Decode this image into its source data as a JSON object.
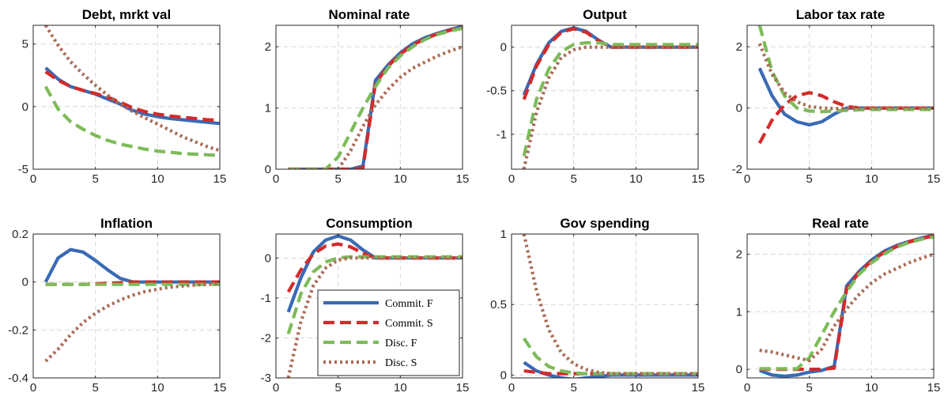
{
  "figure": {
    "panel_count": 8,
    "layout": "2 rows x 4 columns"
  },
  "series_styles": [
    {
      "name": "Commit. F",
      "color": "#3a6ab5",
      "dash": "solid"
    },
    {
      "name": "Commit. S",
      "color": "#d42a2a",
      "dash": "dashed"
    },
    {
      "name": "Disc. F",
      "color": "#7dbb5a",
      "dash": "dashed"
    },
    {
      "name": "Disc. S",
      "color": "#a96b55",
      "dash": "dotted"
    }
  ],
  "legend": {
    "panel": "Consumption",
    "location": "lower-right",
    "entries": [
      "Commit. F",
      "Commit. S",
      "Disc. F",
      "Disc. S"
    ]
  },
  "chart_data": [
    {
      "type": "line",
      "title": "Debt, mrkt val",
      "grid": true,
      "xlim": [
        0,
        15
      ],
      "ylim": [
        -5,
        6.5
      ],
      "xticks": [
        0,
        5,
        10,
        15
      ],
      "yticks": [
        -5,
        0,
        5
      ],
      "yticklabels": [
        "-5",
        "0",
        "5"
      ],
      "x": [
        1,
        2,
        3,
        4,
        5,
        6,
        7,
        8,
        9,
        10,
        11,
        12,
        13,
        14,
        15
      ],
      "series": [
        {
          "name": "Commit. F",
          "values": [
            3.1,
            2.2,
            1.6,
            1.3,
            1.0,
            0.6,
            0.2,
            -0.3,
            -0.6,
            -0.8,
            -0.95,
            -1.05,
            -1.15,
            -1.25,
            -1.35
          ]
        },
        {
          "name": "Commit. S",
          "values": [
            2.8,
            2.1,
            1.6,
            1.3,
            1.05,
            0.75,
            0.35,
            -0.1,
            -0.4,
            -0.6,
            -0.75,
            -0.85,
            -0.95,
            -1.05,
            -1.1
          ]
        },
        {
          "name": "Disc. F",
          "values": [
            1.6,
            -0.2,
            -1.2,
            -1.8,
            -2.3,
            -2.7,
            -3.0,
            -3.2,
            -3.4,
            -3.55,
            -3.65,
            -3.75,
            -3.8,
            -3.85,
            -3.9
          ]
        },
        {
          "name": "Disc. S",
          "values": [
            6.5,
            4.9,
            3.6,
            2.6,
            1.7,
            0.9,
            0.2,
            -0.4,
            -0.9,
            -1.4,
            -1.9,
            -2.4,
            -2.8,
            -3.2,
            -3.5
          ]
        }
      ]
    },
    {
      "type": "line",
      "title": "Nominal rate",
      "grid": true,
      "xlim": [
        0,
        15
      ],
      "ylim": [
        0,
        2.35
      ],
      "xticks": [
        0,
        5,
        10,
        15
      ],
      "yticks": [
        0,
        1,
        2
      ],
      "yticklabels": [
        "0",
        "1",
        "2"
      ],
      "x": [
        1,
        2,
        3,
        4,
        5,
        6,
        7,
        8,
        9,
        10,
        11,
        12,
        13,
        14,
        15
      ],
      "series": [
        {
          "name": "Commit. F",
          "values": [
            0,
            0,
            0,
            0,
            0,
            0,
            0.05,
            1.45,
            1.7,
            1.9,
            2.05,
            2.15,
            2.22,
            2.28,
            2.33
          ]
        },
        {
          "name": "Commit. S",
          "values": [
            0,
            0,
            0,
            0,
            0,
            0,
            0.02,
            1.4,
            1.68,
            1.88,
            2.03,
            2.13,
            2.21,
            2.27,
            2.32
          ]
        },
        {
          "name": "Disc. F",
          "values": [
            0,
            0,
            0,
            0,
            0.2,
            0.6,
            1.0,
            1.35,
            1.65,
            1.85,
            2.0,
            2.12,
            2.2,
            2.26,
            2.3
          ]
        },
        {
          "name": "Disc. S",
          "values": [
            0,
            0,
            0,
            0,
            0,
            0.3,
            0.7,
            1.05,
            1.3,
            1.5,
            1.65,
            1.75,
            1.85,
            1.93,
            2.0
          ]
        }
      ]
    },
    {
      "type": "line",
      "title": "Output",
      "grid": true,
      "xlim": [
        0,
        15
      ],
      "ylim": [
        -1.4,
        0.25
      ],
      "xticks": [
        0,
        5,
        10,
        15
      ],
      "yticks": [
        -1,
        -0.5,
        0
      ],
      "yticklabels": [
        "-1",
        "-0.5",
        "0"
      ],
      "x": [
        1,
        2,
        3,
        4,
        5,
        6,
        7,
        8,
        9,
        10,
        11,
        12,
        13,
        14,
        15
      ],
      "series": [
        {
          "name": "Commit. F",
          "values": [
            -0.55,
            -0.2,
            0.05,
            0.18,
            0.22,
            0.18,
            0.08,
            0,
            0,
            0,
            0,
            0,
            0,
            0,
            0
          ]
        },
        {
          "name": "Commit. S",
          "values": [
            -0.6,
            -0.22,
            0.03,
            0.17,
            0.21,
            0.17,
            0.07,
            0,
            0,
            0,
            0,
            0,
            0,
            0,
            0
          ]
        },
        {
          "name": "Disc. F",
          "values": [
            -1.25,
            -0.6,
            -0.25,
            -0.05,
            0.03,
            0.05,
            0.05,
            0.03,
            0.03,
            0.03,
            0.03,
            0.03,
            0.03,
            0.03,
            0.03
          ]
        },
        {
          "name": "Disc. S",
          "values": [
            -1.4,
            -0.75,
            -0.35,
            -0.12,
            -0.03,
            0,
            0,
            0,
            0,
            0,
            0,
            0,
            0,
            0,
            0
          ]
        }
      ]
    },
    {
      "type": "line",
      "title": "Labor tax rate",
      "grid": true,
      "xlim": [
        0,
        15
      ],
      "ylim": [
        -2,
        2.7
      ],
      "xticks": [
        0,
        5,
        10,
        15
      ],
      "yticks": [
        -2,
        0,
        2
      ],
      "yticklabels": [
        "-2",
        "0",
        "2"
      ],
      "x": [
        1,
        2,
        3,
        4,
        5,
        6,
        7,
        8,
        9,
        10,
        11,
        12,
        13,
        14,
        15
      ],
      "series": [
        {
          "name": "Commit. F",
          "values": [
            1.3,
            0.4,
            -0.2,
            -0.45,
            -0.55,
            -0.45,
            -0.2,
            0,
            0,
            0,
            0,
            0,
            0,
            0,
            0
          ]
        },
        {
          "name": "Commit. S",
          "values": [
            -1.15,
            -0.4,
            0.1,
            0.4,
            0.5,
            0.4,
            0.2,
            0.05,
            0,
            0,
            0,
            0,
            0,
            0,
            0
          ]
        },
        {
          "name": "Disc. F",
          "values": [
            2.7,
            1.2,
            0.4,
            0,
            -0.1,
            -0.12,
            -0.1,
            -0.08,
            -0.06,
            -0.05,
            -0.05,
            -0.05,
            -0.05,
            -0.05,
            -0.05
          ]
        },
        {
          "name": "Disc. S",
          "values": [
            2.1,
            1.1,
            0.5,
            0.2,
            0.05,
            0,
            -0.02,
            -0.02,
            -0.01,
            0,
            0,
            0,
            0,
            0,
            0
          ]
        }
      ]
    },
    {
      "type": "line",
      "title": "Inflation",
      "grid": true,
      "xlim": [
        0,
        15
      ],
      "ylim": [
        -0.4,
        0.2
      ],
      "xticks": [
        0,
        5,
        10,
        15
      ],
      "yticks": [
        -0.4,
        -0.2,
        0,
        0.2
      ],
      "yticklabels": [
        "-0.4",
        "-0.2",
        "0",
        "0.2"
      ],
      "x": [
        1,
        2,
        3,
        4,
        5,
        6,
        7,
        8,
        9,
        10,
        11,
        12,
        13,
        14,
        15
      ],
      "series": [
        {
          "name": "Commit. F",
          "values": [
            0,
            0.1,
            0.135,
            0.125,
            0.09,
            0.05,
            0.015,
            0,
            0,
            0,
            0,
            0,
            0,
            0,
            0
          ]
        },
        {
          "name": "Commit. S",
          "values": [
            -0.01,
            -0.01,
            -0.01,
            -0.01,
            -0.008,
            -0.005,
            -0.003,
            0,
            0,
            0,
            0,
            0,
            0,
            0,
            0
          ]
        },
        {
          "name": "Disc. F",
          "values": [
            -0.01,
            -0.01,
            -0.01,
            -0.01,
            -0.01,
            -0.01,
            -0.01,
            -0.01,
            -0.01,
            -0.01,
            -0.01,
            -0.01,
            -0.01,
            -0.01,
            -0.01
          ]
        },
        {
          "name": "Disc. S",
          "values": [
            -0.33,
            -0.28,
            -0.22,
            -0.17,
            -0.13,
            -0.1,
            -0.075,
            -0.055,
            -0.04,
            -0.03,
            -0.022,
            -0.017,
            -0.013,
            -0.01,
            -0.008
          ]
        }
      ]
    },
    {
      "type": "line",
      "title": "Consumption",
      "grid": true,
      "xlim": [
        0,
        15
      ],
      "ylim": [
        -3,
        0.6
      ],
      "xticks": [
        0,
        5,
        10,
        15
      ],
      "yticks": [
        -3,
        -2,
        -1,
        0
      ],
      "yticklabels": [
        "-3",
        "-2",
        "-1",
        "0"
      ],
      "x": [
        1,
        2,
        3,
        4,
        5,
        6,
        7,
        8,
        9,
        10,
        11,
        12,
        13,
        14,
        15
      ],
      "series": [
        {
          "name": "Commit. F",
          "values": [
            -1.35,
            -0.5,
            0.15,
            0.45,
            0.55,
            0.45,
            0.2,
            0,
            0,
            0,
            0,
            0,
            0,
            0,
            0
          ]
        },
        {
          "name": "Commit. S",
          "values": [
            -0.85,
            -0.3,
            0.1,
            0.3,
            0.35,
            0.28,
            0.12,
            0,
            0,
            0,
            0,
            0,
            0,
            0,
            0
          ]
        },
        {
          "name": "Disc. F",
          "values": [
            -1.9,
            -0.9,
            -0.35,
            -0.1,
            0,
            0.03,
            0.03,
            0.03,
            0.03,
            0.03,
            0.03,
            0.03,
            0.03,
            0.03,
            0.03
          ]
        },
        {
          "name": "Disc. S",
          "values": [
            -3,
            -1.6,
            -0.7,
            -0.25,
            -0.05,
            0,
            0,
            0,
            0,
            0,
            0,
            0,
            0,
            0,
            0
          ]
        }
      ]
    },
    {
      "type": "line",
      "title": "Gov spending",
      "grid": true,
      "xlim": [
        0,
        15
      ],
      "ylim": [
        -0.02,
        1.0
      ],
      "xticks": [
        0,
        5,
        10,
        15
      ],
      "yticks": [
        0,
        0.5,
        1
      ],
      "yticklabels": [
        "0",
        "0.5",
        "1"
      ],
      "x": [
        1,
        2,
        3,
        4,
        5,
        6,
        7,
        8,
        9,
        10,
        11,
        12,
        13,
        14,
        15
      ],
      "series": [
        {
          "name": "Commit. F",
          "values": [
            0.09,
            0.03,
            0,
            -0.02,
            -0.03,
            -0.02,
            -0.01,
            0,
            0,
            0,
            0,
            0,
            0,
            0,
            0
          ]
        },
        {
          "name": "Commit. S",
          "values": [
            0.03,
            0.02,
            0.01,
            0.01,
            0.01,
            0.01,
            0.01,
            0.01,
            0.01,
            0.01,
            0.01,
            0.01,
            0.01,
            0.01,
            0.01
          ]
        },
        {
          "name": "Disc. F",
          "values": [
            0.26,
            0.13,
            0.06,
            0.03,
            0.015,
            0.01,
            0.01,
            0.01,
            0.01,
            0.01,
            0.01,
            0.01,
            0.01,
            0.01,
            0.01
          ]
        },
        {
          "name": "Disc. S",
          "values": [
            1.0,
            0.6,
            0.32,
            0.16,
            0.08,
            0.04,
            0.02,
            0.01,
            0.01,
            0.01,
            0.01,
            0.01,
            0.01,
            0.01,
            0.01
          ]
        }
      ]
    },
    {
      "type": "line",
      "title": "Real rate",
      "grid": true,
      "xlim": [
        0,
        15
      ],
      "ylim": [
        -0.15,
        2.35
      ],
      "xticks": [
        0,
        5,
        10,
        15
      ],
      "yticks": [
        0,
        1,
        2
      ],
      "yticklabels": [
        "0",
        "1",
        "2"
      ],
      "x": [
        1,
        2,
        3,
        4,
        5,
        6,
        7,
        8,
        9,
        10,
        11,
        12,
        13,
        14,
        15
      ],
      "series": [
        {
          "name": "Commit. F",
          "values": [
            -0.02,
            -0.1,
            -0.12,
            -0.1,
            -0.05,
            -0.02,
            0.05,
            1.45,
            1.7,
            1.9,
            2.05,
            2.15,
            2.22,
            2.28,
            2.33
          ]
        },
        {
          "name": "Commit. S",
          "values": [
            0,
            0,
            0,
            0,
            0,
            0,
            0.02,
            1.4,
            1.68,
            1.88,
            2.03,
            2.13,
            2.21,
            2.27,
            2.32
          ]
        },
        {
          "name": "Disc. F",
          "values": [
            0.01,
            0.01,
            0.01,
            0.01,
            0.2,
            0.6,
            1.0,
            1.35,
            1.65,
            1.85,
            2.0,
            2.12,
            2.2,
            2.26,
            2.3
          ]
        },
        {
          "name": "Disc. S",
          "values": [
            0.33,
            0.3,
            0.25,
            0.2,
            0.15,
            0.35,
            0.75,
            1.05,
            1.3,
            1.5,
            1.65,
            1.75,
            1.85,
            1.93,
            2.0
          ]
        }
      ]
    }
  ]
}
